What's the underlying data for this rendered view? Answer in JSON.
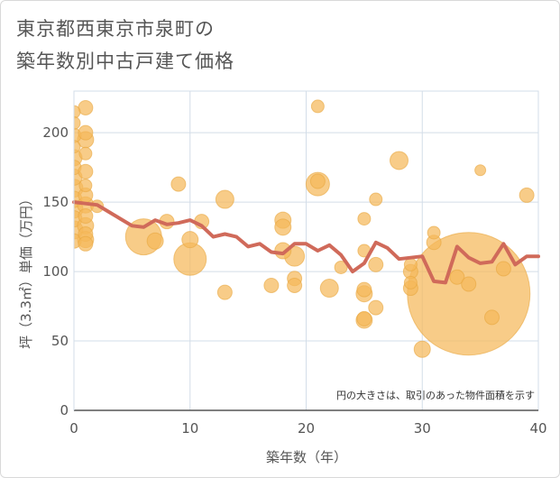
{
  "chart_data": {
    "type": "scatter",
    "title_lines": [
      "東京都西東京市泉町の",
      "築年数別中古戸建て価格"
    ],
    "xlabel": "築年数（年）",
    "ylabel": "坪（3.3㎡）単価（万円）",
    "xlim": [
      0,
      40
    ],
    "ylim": [
      0,
      230
    ],
    "x_ticks": [
      0,
      10,
      20,
      30,
      40
    ],
    "y_ticks": [
      0,
      50,
      100,
      150,
      200
    ],
    "note": "円の大きさは、取引のあった物件面積を示す",
    "colors": {
      "bubble": "#f5b85a",
      "bubble_stroke": "#e8a640",
      "line": "#d06a5a",
      "grid": "#d3dde8",
      "axis": "#555555"
    },
    "scatter": [
      {
        "x": 0,
        "y": 215,
        "s": 7
      },
      {
        "x": 0,
        "y": 207,
        "s": 7
      },
      {
        "x": 0,
        "y": 198,
        "s": 8
      },
      {
        "x": 0,
        "y": 190,
        "s": 7
      },
      {
        "x": 0,
        "y": 182,
        "s": 9
      },
      {
        "x": 0,
        "y": 175,
        "s": 8
      },
      {
        "x": 0,
        "y": 168,
        "s": 9
      },
      {
        "x": 0,
        "y": 160,
        "s": 10
      },
      {
        "x": 0,
        "y": 152,
        "s": 9
      },
      {
        "x": 0,
        "y": 145,
        "s": 10
      },
      {
        "x": 0,
        "y": 138,
        "s": 9
      },
      {
        "x": 0,
        "y": 130,
        "s": 10
      },
      {
        "x": 0,
        "y": 122,
        "s": 8
      },
      {
        "x": 1,
        "y": 218,
        "s": 8
      },
      {
        "x": 1,
        "y": 200,
        "s": 8
      },
      {
        "x": 1,
        "y": 195,
        "s": 9
      },
      {
        "x": 1,
        "y": 185,
        "s": 7
      },
      {
        "x": 1,
        "y": 172,
        "s": 8
      },
      {
        "x": 1,
        "y": 162,
        "s": 7
      },
      {
        "x": 1,
        "y": 155,
        "s": 8
      },
      {
        "x": 1,
        "y": 148,
        "s": 9
      },
      {
        "x": 1,
        "y": 140,
        "s": 8
      },
      {
        "x": 1,
        "y": 133,
        "s": 9
      },
      {
        "x": 1,
        "y": 127,
        "s": 8
      },
      {
        "x": 1,
        "y": 120,
        "s": 8
      },
      {
        "x": 1,
        "y": 123,
        "s": 9
      },
      {
        "x": 2,
        "y": 147,
        "s": 7
      },
      {
        "x": 6,
        "y": 125,
        "s": 20
      },
      {
        "x": 7,
        "y": 122,
        "s": 9
      },
      {
        "x": 8,
        "y": 136,
        "s": 8
      },
      {
        "x": 9,
        "y": 163,
        "s": 8
      },
      {
        "x": 10,
        "y": 123,
        "s": 9
      },
      {
        "x": 10,
        "y": 109,
        "s": 18
      },
      {
        "x": 11,
        "y": 136,
        "s": 8
      },
      {
        "x": 13,
        "y": 152,
        "s": 10
      },
      {
        "x": 13,
        "y": 85,
        "s": 8
      },
      {
        "x": 17,
        "y": 90,
        "s": 8
      },
      {
        "x": 18,
        "y": 137,
        "s": 9
      },
      {
        "x": 18,
        "y": 132,
        "s": 9
      },
      {
        "x": 18,
        "y": 115,
        "s": 9
      },
      {
        "x": 19,
        "y": 111,
        "s": 11
      },
      {
        "x": 19,
        "y": 95,
        "s": 8
      },
      {
        "x": 19,
        "y": 90,
        "s": 8
      },
      {
        "x": 21,
        "y": 219,
        "s": 7
      },
      {
        "x": 21,
        "y": 163,
        "s": 13
      },
      {
        "x": 21,
        "y": 165,
        "s": 8
      },
      {
        "x": 22,
        "y": 88,
        "s": 10
      },
      {
        "x": 23,
        "y": 103,
        "s": 7
      },
      {
        "x": 25,
        "y": 138,
        "s": 7
      },
      {
        "x": 25,
        "y": 115,
        "s": 7
      },
      {
        "x": 25,
        "y": 87,
        "s": 8
      },
      {
        "x": 25,
        "y": 84,
        "s": 9
      },
      {
        "x": 25,
        "y": 66,
        "s": 8
      },
      {
        "x": 25,
        "y": 65,
        "s": 9
      },
      {
        "x": 26,
        "y": 152,
        "s": 7
      },
      {
        "x": 26,
        "y": 105,
        "s": 8
      },
      {
        "x": 26,
        "y": 74,
        "s": 8
      },
      {
        "x": 28,
        "y": 180,
        "s": 10
      },
      {
        "x": 29,
        "y": 105,
        "s": 7
      },
      {
        "x": 29,
        "y": 100,
        "s": 8
      },
      {
        "x": 29,
        "y": 92,
        "s": 7
      },
      {
        "x": 29,
        "y": 88,
        "s": 8
      },
      {
        "x": 30,
        "y": 44,
        "s": 9
      },
      {
        "x": 31,
        "y": 128,
        "s": 7
      },
      {
        "x": 31,
        "y": 121,
        "s": 8
      },
      {
        "x": 33,
        "y": 96,
        "s": 8
      },
      {
        "x": 34,
        "y": 84,
        "s": 68
      },
      {
        "x": 34,
        "y": 91,
        "s": 8
      },
      {
        "x": 35,
        "y": 173,
        "s": 6
      },
      {
        "x": 36,
        "y": 67,
        "s": 8
      },
      {
        "x": 37,
        "y": 102,
        "s": 8
      },
      {
        "x": 39,
        "y": 155,
        "s": 8
      }
    ],
    "line": {
      "x": [
        0,
        1,
        2,
        3,
        4,
        5,
        6,
        7,
        8,
        9,
        10,
        11,
        12,
        13,
        14,
        15,
        16,
        17,
        18,
        19,
        20,
        21,
        22,
        23,
        24,
        25,
        26,
        27,
        28,
        29,
        30,
        31,
        32,
        33,
        34,
        35,
        36,
        37,
        38,
        39,
        40
      ],
      "y": [
        150,
        149,
        148,
        143,
        138,
        133,
        132,
        137,
        134,
        135,
        137,
        133,
        125,
        127,
        125,
        118,
        120,
        114,
        113,
        120,
        120,
        115,
        119,
        112,
        100,
        106,
        121,
        117,
        109,
        110,
        111,
        93,
        92,
        118,
        110,
        106,
        107,
        120,
        105,
        111,
        111
      ]
    }
  }
}
